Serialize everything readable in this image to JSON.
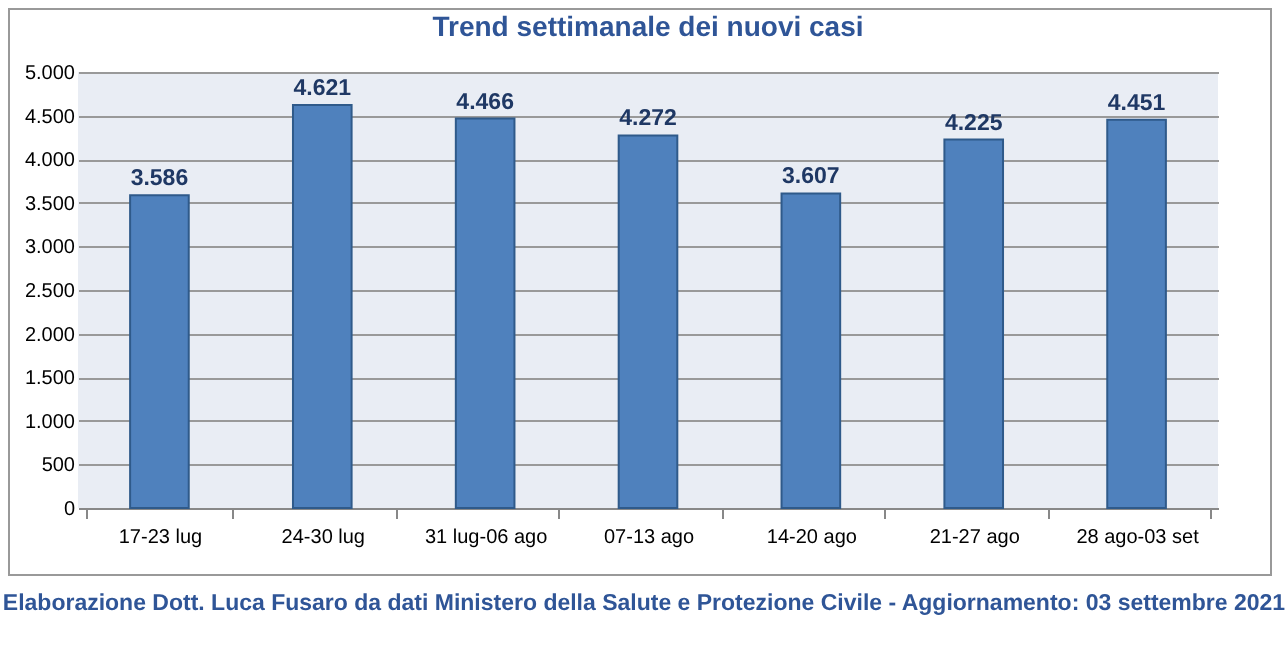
{
  "chart_data": {
    "type": "bar",
    "title": "Trend settimanale dei nuovi casi",
    "categories": [
      "17-23 lug",
      "24-30 lug",
      "31 lug-06 ago",
      "07-13 ago",
      "14-20 ago",
      "21-27 ago",
      "28 ago-03 set"
    ],
    "values": [
      3586,
      4621,
      4466,
      4272,
      3607,
      4225,
      4451
    ],
    "value_labels": [
      "3.586",
      "4.621",
      "4.466",
      "4.272",
      "3.607",
      "4.225",
      "4.451"
    ],
    "color": "#4f81bd",
    "ylim": [
      0,
      5000
    ],
    "yticks": [
      {
        "value": 0,
        "label": "0"
      },
      {
        "value": 500,
        "label": "500"
      },
      {
        "value": 1000,
        "label": "1.000"
      },
      {
        "value": 1500,
        "label": "1.500"
      },
      {
        "value": 2000,
        "label": "2.000"
      },
      {
        "value": 2500,
        "label": "2.500"
      },
      {
        "value": 3000,
        "label": "3.000"
      },
      {
        "value": 3500,
        "label": "3.500"
      },
      {
        "value": 4000,
        "label": "4.000"
      },
      {
        "value": 4500,
        "label": "4.500"
      },
      {
        "value": 5000,
        "label": "5.000"
      }
    ],
    "grid": "y",
    "annotations": [
      "Elaborazione Dott. Luca Fusaro da dati Ministero della Salute e Protezione Civile - Aggiornamento: 03 settembre 2021"
    ]
  }
}
